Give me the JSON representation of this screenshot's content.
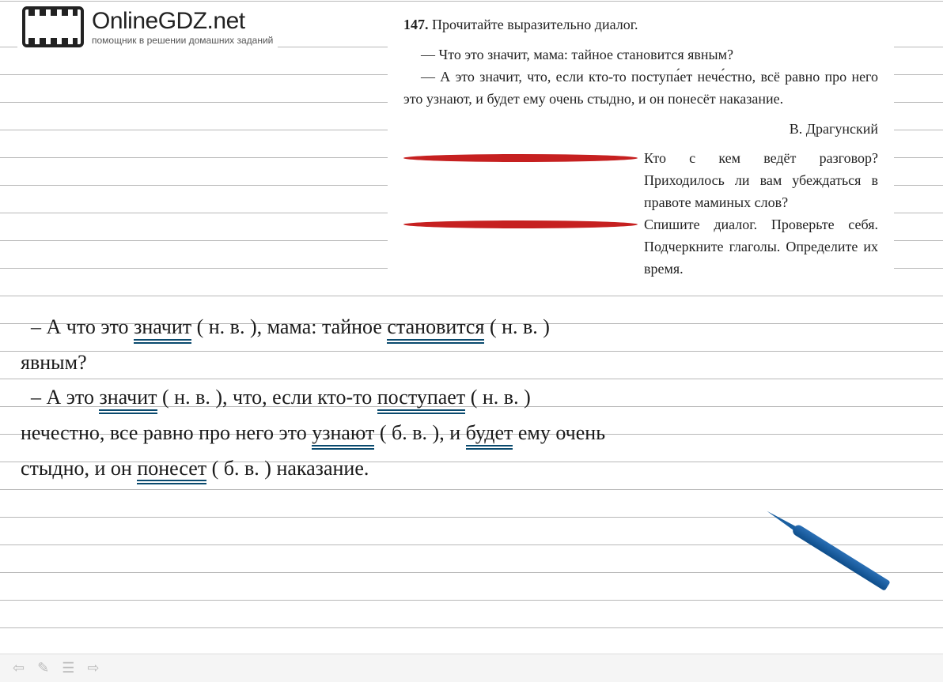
{
  "logo": {
    "main": "OnlineGDZ.net",
    "sub": "помощник в решении домашних заданий"
  },
  "textbook": {
    "num": "147.",
    "title": "Прочитайте выразительно диалог.",
    "line1": "— Что это значит, мама: тайное становится явным?",
    "line2": "— А это значит, что, если кто-то поступа́ет нече́стно, всё равно про него это узнают, и будет ему очень стыдно, и он понесёт наказание.",
    "author": "В. Драгунский",
    "task1": "Кто с кем ведёт разговор? Приходилось ли вам убеждаться в правоте маминых слов?",
    "task2": "Спишите диалог. Проверьте себя. Подчеркните глаголы. Определите их время."
  },
  "hw": {
    "l1a": "– А что это ",
    "l1v1": "значит",
    "l1b": " ( н. в. ), мама: тайное ",
    "l1v2": "становится",
    "l1c": " ( н. в. )",
    "l2a": "явным?",
    "l3a": "– А это ",
    "l3v1": "значит",
    "l3b": " ( н. в. ), что, если кто-то ",
    "l3v2": "поступает",
    "l3c": " ( н. в. )",
    "l4a": "нечестно, все равно про него это ",
    "l4v1": "узнают",
    "l4b": " ( б. в. ), и ",
    "l4v2": "будет",
    "l4c": " ему очень",
    "l5a": "стыдно, и он ",
    "l5v1": "понесет",
    "l5b": " ( б. в. ) наказание."
  },
  "bar": {
    "prev": "⇦",
    "edit": "✎",
    "menu": "☰",
    "next": "⇨"
  }
}
